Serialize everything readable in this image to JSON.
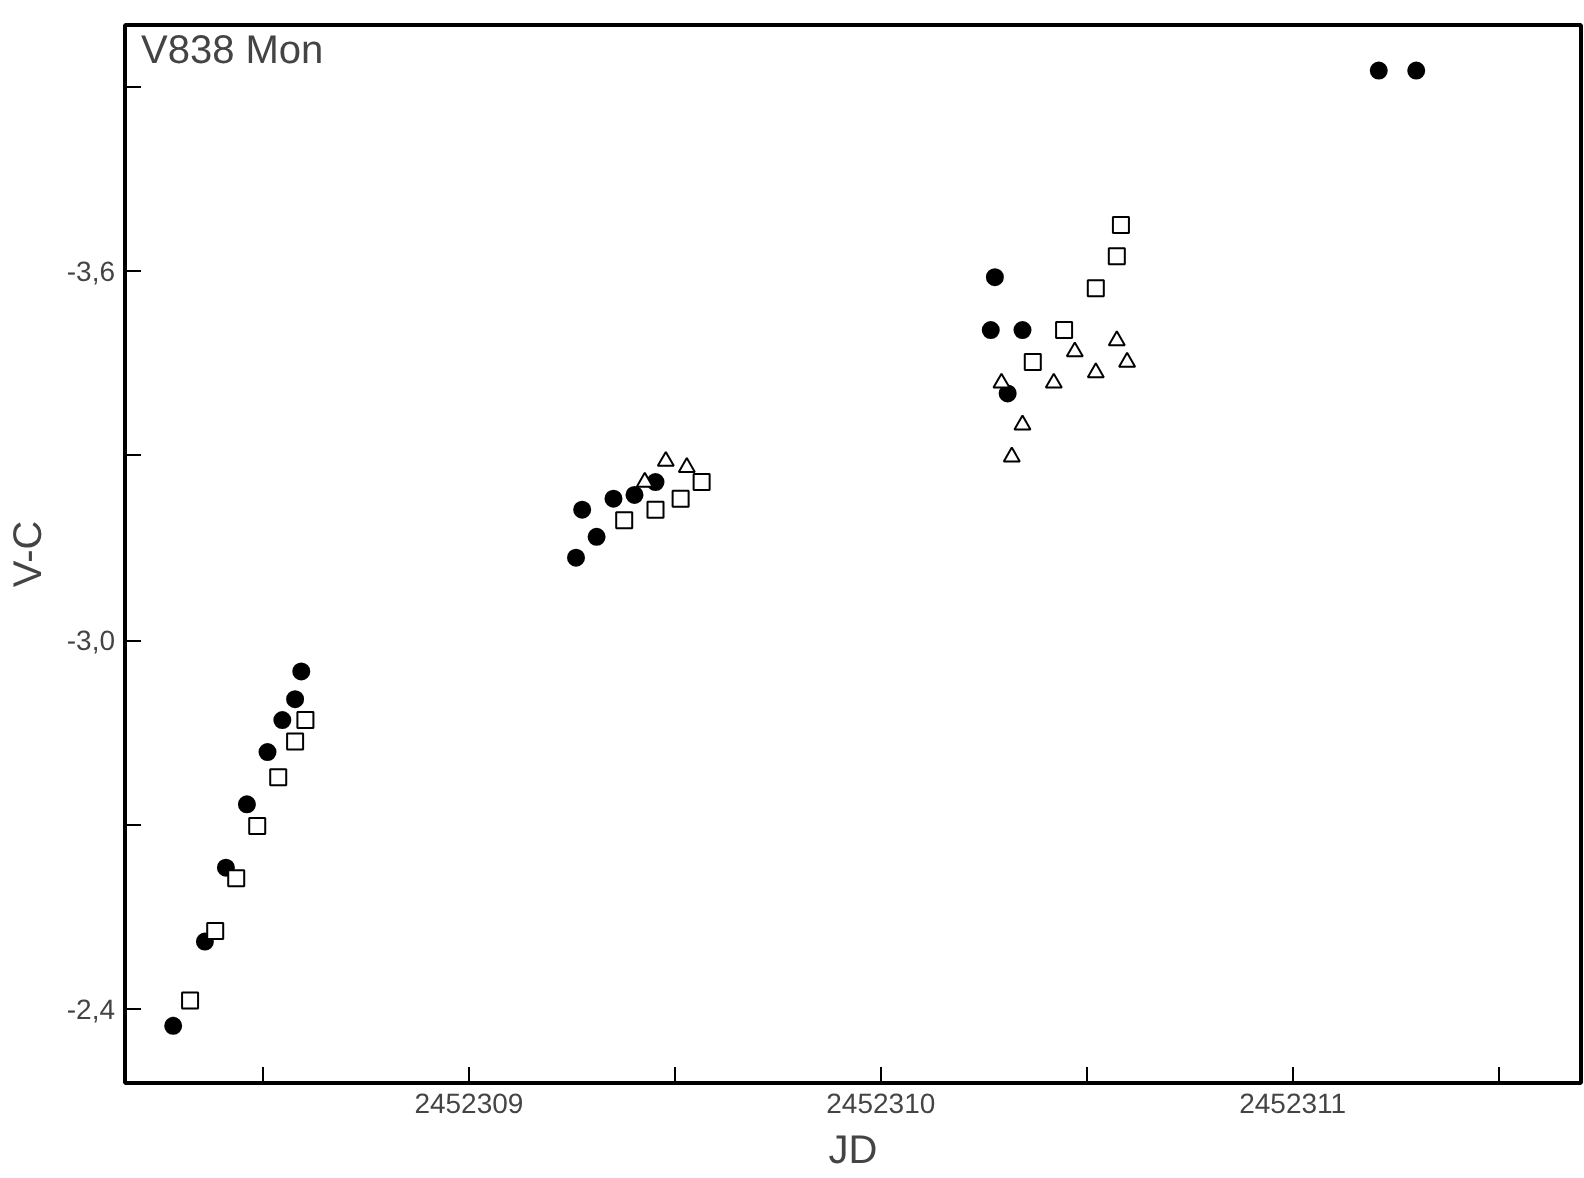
{
  "chart_data": {
    "type": "scatter",
    "xlabel": "JD",
    "ylabel": "V-C",
    "annotations": [
      "V838 Mon"
    ],
    "xlim": [
      2452308.165,
      2452311.7
    ],
    "ylim": [
      -2.28,
      -4.0
    ],
    "xticks": [
      {
        "value": 2452308.5,
        "label": null
      },
      2452309,
      {
        "value": 2452309.5,
        "label": null
      },
      2452310,
      {
        "value": 2452310.5,
        "label": null
      },
      2452311,
      {
        "value": 2452311.5,
        "label": null
      }
    ],
    "yticks": [
      {
        "value": -2.4,
        "label": "-2,4"
      },
      {
        "value": -2.7,
        "label": null
      },
      {
        "value": -3.0,
        "label": "-3,0"
      },
      {
        "value": -3.3,
        "label": null
      },
      {
        "value": -3.6,
        "label": "-3,6"
      },
      {
        "value": -3.9,
        "label": null
      }
    ],
    "grid": false,
    "series": [
      {
        "color": "#000000",
        "marker": "circle",
        "x": [
          2452308.282,
          2452308.359,
          2452308.41,
          2452308.461,
          2452308.511,
          2452308.547,
          2452308.578,
          2452308.593,
          2452309.26,
          2452309.275,
          2452309.31,
          2452309.351,
          2452309.402,
          2452309.453,
          2452310.277,
          2452310.267,
          2452310.308,
          2452310.344,
          2452311.209,
          2452311.3
        ],
        "values": [
          -2.373,
          -2.51,
          -2.63,
          -2.733,
          -2.818,
          -2.87,
          -2.904,
          -2.949,
          -3.134,
          -3.212,
          -3.168,
          -3.23,
          -3.236,
          -3.257,
          -3.59,
          -3.504,
          -3.401,
          -3.504,
          -3.926,
          -3.926
        ]
      },
      {
        "color": "#000000",
        "marker": "square",
        "x": [
          2452308.323,
          2452308.384,
          2452308.435,
          2452308.486,
          2452308.537,
          2452308.578,
          2452308.603,
          2452309.377,
          2452309.453,
          2452309.514,
          2452309.565,
          2452310.369,
          2452310.445,
          2452310.522,
          2452310.573,
          2452310.583
        ],
        "values": [
          -2.414,
          -2.527,
          -2.613,
          -2.698,
          -2.777,
          -2.835,
          -2.87,
          -3.195,
          -3.212,
          -3.23,
          -3.257,
          -3.452,
          -3.504,
          -3.572,
          -3.624,
          -3.675
        ]
      },
      {
        "color": "#000000",
        "marker": "triangle",
        "x": [
          2452309.427,
          2452309.478,
          2452309.529,
          2452310.293,
          2452310.344,
          2452310.318,
          2452310.42,
          2452310.471,
          2452310.522,
          2452310.573,
          2452310.598
        ],
        "values": [
          -3.257,
          -3.291,
          -3.281,
          -3.418,
          -3.35,
          -3.298,
          -3.418,
          -3.469,
          -3.435,
          -3.487,
          -3.452
        ]
      }
    ]
  }
}
